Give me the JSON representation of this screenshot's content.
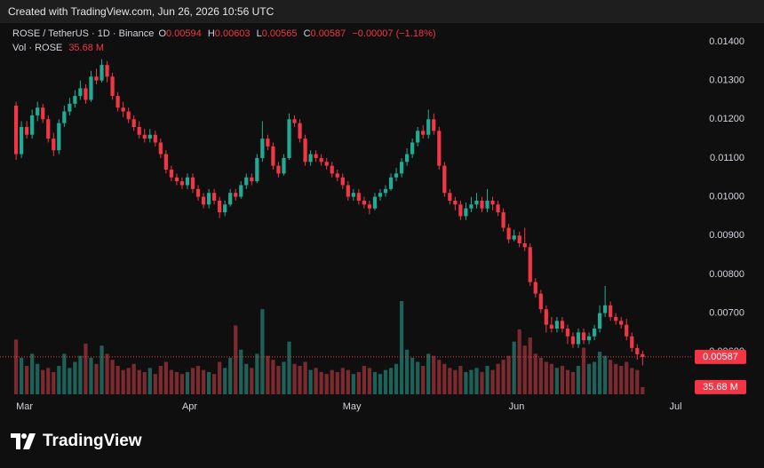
{
  "header": "Created with TradingView.com, Jun 26, 2026 10:56 UTC",
  "brand": "TradingView",
  "chart_data": {
    "type": "candlestick",
    "legend_title": "ROSE / TetherUS · 1D · Binance",
    "ohlc_prefixes": [
      "O",
      "H",
      "L",
      "C"
    ],
    "change_label": "−0.00007 (−1.18%)",
    "volume_title": "Vol · ROSE",
    "volume_label": "35.68 M",
    "up_color": "#22ab94",
    "down_color": "#f23645",
    "volume_up_color": "#1d6158",
    "volume_down_color": "#7b2a30",
    "grid": false,
    "ylim": [
      0.00431,
      0.01448
    ],
    "yticks": [
      {
        "value": 0.014,
        "label": "0.01400"
      },
      {
        "value": 0.013,
        "label": "0.01300"
      },
      {
        "value": 0.012,
        "label": "0.01200"
      },
      {
        "value": 0.011,
        "label": "0.01100"
      },
      {
        "value": 0.01,
        "label": "0.01000"
      },
      {
        "value": 0.009,
        "label": "0.00900"
      },
      {
        "value": 0.008,
        "label": "0.00800"
      },
      {
        "value": 0.007,
        "label": "0.00700"
      },
      {
        "value": 0.006,
        "label": "0.00600"
      }
    ],
    "xlim": [
      -3,
      126.4
    ],
    "xticks": [
      {
        "value": 0,
        "label": "Mar"
      },
      {
        "value": 31,
        "label": "Apr"
      },
      {
        "value": 61,
        "label": "May"
      },
      {
        "value": 92,
        "label": "Jun"
      },
      {
        "value": 122,
        "label": "Jul"
      }
    ],
    "candles": [
      [
        0.01235,
        0.01245,
        0.01095,
        0.0111
      ],
      [
        0.0111,
        0.01195,
        0.011,
        0.0118
      ],
      [
        0.0118,
        0.01195,
        0.0115,
        0.0116
      ],
      [
        0.0116,
        0.01225,
        0.0115,
        0.0121
      ],
      [
        0.0121,
        0.01245,
        0.01195,
        0.0123
      ],
      [
        0.0123,
        0.0124,
        0.0119,
        0.012
      ],
      [
        0.012,
        0.0121,
        0.0114,
        0.0115
      ],
      [
        0.0115,
        0.01165,
        0.01105,
        0.0112
      ],
      [
        0.0112,
        0.012,
        0.0111,
        0.0119
      ],
      [
        0.0119,
        0.01235,
        0.0118,
        0.0122
      ],
      [
        0.0122,
        0.01255,
        0.0121,
        0.0124
      ],
      [
        0.0124,
        0.01275,
        0.0123,
        0.0126
      ],
      [
        0.0126,
        0.013,
        0.0125,
        0.0128
      ],
      [
        0.0128,
        0.0129,
        0.0124,
        0.0125
      ],
      [
        0.0125,
        0.01325,
        0.01245,
        0.0131
      ],
      [
        0.0131,
        0.0133,
        0.0129,
        0.013
      ],
      [
        0.013,
        0.01355,
        0.01295,
        0.0134
      ],
      [
        0.0134,
        0.0135,
        0.01295,
        0.0131
      ],
      [
        0.0131,
        0.0132,
        0.0125,
        0.0126
      ],
      [
        0.0126,
        0.0127,
        0.0122,
        0.0123
      ],
      [
        0.0123,
        0.01245,
        0.01205,
        0.0122
      ],
      [
        0.0122,
        0.0123,
        0.0119,
        0.012
      ],
      [
        0.012,
        0.0121,
        0.0117,
        0.0118
      ],
      [
        0.0118,
        0.01195,
        0.0115,
        0.0116
      ],
      [
        0.0116,
        0.01175,
        0.0114,
        0.0115
      ],
      [
        0.0115,
        0.01175,
        0.0114,
        0.0116
      ],
      [
        0.0116,
        0.0117,
        0.0113,
        0.0114
      ],
      [
        0.0114,
        0.0115,
        0.011,
        0.0111
      ],
      [
        0.0111,
        0.0112,
        0.0106,
        0.0107
      ],
      [
        0.0107,
        0.0108,
        0.0104,
        0.0105
      ],
      [
        0.0105,
        0.0106,
        0.0103,
        0.0104
      ],
      [
        0.0104,
        0.0105,
        0.0102,
        0.0103
      ],
      [
        0.0103,
        0.0106,
        0.0102,
        0.0105
      ],
      [
        0.0105,
        0.0106,
        0.0101,
        0.0102
      ],
      [
        0.0102,
        0.0103,
        0.0099,
        0.01
      ],
      [
        0.01,
        0.0101,
        0.0097,
        0.0098
      ],
      [
        0.0098,
        0.0102,
        0.0097,
        0.0101
      ],
      [
        0.0101,
        0.0102,
        0.0098,
        0.0099
      ],
      [
        0.0099,
        0.01,
        0.00945,
        0.0096
      ],
      [
        0.0096,
        0.0099,
        0.0095,
        0.0098
      ],
      [
        0.0098,
        0.0102,
        0.00975,
        0.0101
      ],
      [
        0.0101,
        0.0102,
        0.0099,
        0.01
      ],
      [
        0.01,
        0.0104,
        0.00995,
        0.0103
      ],
      [
        0.0103,
        0.0106,
        0.0102,
        0.0105
      ],
      [
        0.0105,
        0.0106,
        0.0103,
        0.0104
      ],
      [
        0.0104,
        0.0111,
        0.01035,
        0.011
      ],
      [
        0.011,
        0.01195,
        0.0109,
        0.0115
      ],
      [
        0.0115,
        0.0116,
        0.0112,
        0.0113
      ],
      [
        0.0113,
        0.0114,
        0.0107,
        0.0108
      ],
      [
        0.0108,
        0.0109,
        0.0105,
        0.0106
      ],
      [
        0.0106,
        0.0111,
        0.01055,
        0.011
      ],
      [
        0.011,
        0.01215,
        0.01095,
        0.012
      ],
      [
        0.012,
        0.0121,
        0.0118,
        0.0119
      ],
      [
        0.0119,
        0.012,
        0.0114,
        0.0115
      ],
      [
        0.0115,
        0.0116,
        0.0108,
        0.0109
      ],
      [
        0.0109,
        0.0112,
        0.0108,
        0.0111
      ],
      [
        0.0111,
        0.0112,
        0.0109,
        0.011
      ],
      [
        0.011,
        0.0111,
        0.0108,
        0.0109
      ],
      [
        0.0109,
        0.011,
        0.0107,
        0.0108
      ],
      [
        0.0108,
        0.0109,
        0.0105,
        0.0106
      ],
      [
        0.0106,
        0.0107,
        0.0104,
        0.0105
      ],
      [
        0.0105,
        0.0106,
        0.0102,
        0.0103
      ],
      [
        0.0103,
        0.0104,
        0.0099,
        0.01
      ],
      [
        0.01,
        0.0102,
        0.0099,
        0.0101
      ],
      [
        0.0101,
        0.0102,
        0.0098,
        0.0099
      ],
      [
        0.0099,
        0.01,
        0.0097,
        0.0098
      ],
      [
        0.0098,
        0.0099,
        0.00955,
        0.0097
      ],
      [
        0.0097,
        0.0101,
        0.00965,
        0.01
      ],
      [
        0.01,
        0.0102,
        0.0099,
        0.0101
      ],
      [
        0.0101,
        0.0103,
        0.01,
        0.0102
      ],
      [
        0.0102,
        0.0106,
        0.01015,
        0.0105
      ],
      [
        0.0105,
        0.01075,
        0.0104,
        0.0106
      ],
      [
        0.0106,
        0.011,
        0.0105,
        0.0109
      ],
      [
        0.0109,
        0.01125,
        0.0108,
        0.0111
      ],
      [
        0.0111,
        0.0115,
        0.011,
        0.0114
      ],
      [
        0.0114,
        0.0118,
        0.0113,
        0.0117
      ],
      [
        0.0117,
        0.01185,
        0.0115,
        0.0116
      ],
      [
        0.0116,
        0.01225,
        0.0115,
        0.012
      ],
      [
        0.012,
        0.01215,
        0.0116,
        0.0117
      ],
      [
        0.0117,
        0.0118,
        0.0107,
        0.0108
      ],
      [
        0.0108,
        0.0109,
        0.01,
        0.0101
      ],
      [
        0.0101,
        0.0102,
        0.0098,
        0.0099
      ],
      [
        0.0099,
        0.01,
        0.00965,
        0.0098
      ],
      [
        0.0098,
        0.0099,
        0.0094,
        0.0095
      ],
      [
        0.0095,
        0.00985,
        0.0094,
        0.0097
      ],
      [
        0.0097,
        0.01,
        0.0096,
        0.0098
      ],
      [
        0.0098,
        0.0101,
        0.0097,
        0.0099
      ],
      [
        0.0099,
        0.01,
        0.0096,
        0.0097
      ],
      [
        0.0097,
        0.0102,
        0.0096,
        0.0099
      ],
      [
        0.0099,
        0.01,
        0.00965,
        0.0098
      ],
      [
        0.0098,
        0.0099,
        0.0095,
        0.0096
      ],
      [
        0.0096,
        0.0097,
        0.0091,
        0.0092
      ],
      [
        0.0092,
        0.0093,
        0.0088,
        0.0089
      ],
      [
        0.0089,
        0.00915,
        0.00885,
        0.009
      ],
      [
        0.009,
        0.0091,
        0.0087,
        0.0088
      ],
      [
        0.0088,
        0.0092,
        0.0086,
        0.0087
      ],
      [
        0.0087,
        0.0088,
        0.0077,
        0.0078
      ],
      [
        0.0078,
        0.0079,
        0.0074,
        0.0075
      ],
      [
        0.0075,
        0.0076,
        0.007,
        0.0071
      ],
      [
        0.0071,
        0.0072,
        0.0065,
        0.0067
      ],
      [
        0.0067,
        0.0069,
        0.0065,
        0.0066
      ],
      [
        0.0066,
        0.0069,
        0.0065,
        0.0068
      ],
      [
        0.0068,
        0.0069,
        0.0065,
        0.0066
      ],
      [
        0.0066,
        0.0067,
        0.0062,
        0.0064
      ],
      [
        0.0064,
        0.0065,
        0.0061,
        0.0062
      ],
      [
        0.0062,
        0.0066,
        0.0061,
        0.0065
      ],
      [
        0.0065,
        0.0066,
        0.0062,
        0.0063
      ],
      [
        0.0063,
        0.0065,
        0.0062,
        0.0064
      ],
      [
        0.0064,
        0.0067,
        0.0063,
        0.0066
      ],
      [
        0.0066,
        0.0072,
        0.0065,
        0.007
      ],
      [
        0.007,
        0.0077,
        0.0069,
        0.0072
      ],
      [
        0.0072,
        0.0073,
        0.0068,
        0.0069
      ],
      [
        0.0069,
        0.007,
        0.0067,
        0.0068
      ],
      [
        0.0068,
        0.0069,
        0.0066,
        0.0067
      ],
      [
        0.0067,
        0.00685,
        0.0063,
        0.0064
      ],
      [
        0.0064,
        0.0065,
        0.006,
        0.0061
      ],
      [
        0.0061,
        0.0062,
        0.0058,
        0.00594
      ],
      [
        0.00594,
        0.00603,
        0.00565,
        0.00587
      ]
    ],
    "volume": [
      270,
      180,
      140,
      200,
      150,
      120,
      130,
      110,
      140,
      200,
      130,
      160,
      190,
      250,
      180,
      150,
      240,
      200,
      170,
      140,
      120,
      130,
      150,
      120,
      110,
      130,
      100,
      140,
      160,
      120,
      110,
      100,
      110,
      130,
      140,
      120,
      110,
      100,
      160,
      130,
      180,
      340,
      220,
      150,
      130,
      200,
      420,
      190,
      170,
      140,
      160,
      260,
      150,
      140,
      160,
      120,
      130,
      110,
      100,
      120,
      110,
      130,
      120,
      100,
      110,
      140,
      130,
      110,
      100,
      120,
      130,
      150,
      460,
      220,
      180,
      160,
      140,
      200,
      190,
      170,
      150,
      130,
      120,
      140,
      110,
      120,
      130,
      110,
      140,
      120,
      150,
      170,
      190,
      260,
      320,
      240,
      280,
      200,
      180,
      160,
      150,
      130,
      140,
      120,
      110,
      140,
      230,
      150,
      160,
      210,
      190,
      170,
      150,
      140,
      160,
      130,
      120,
      35.68
    ]
  }
}
